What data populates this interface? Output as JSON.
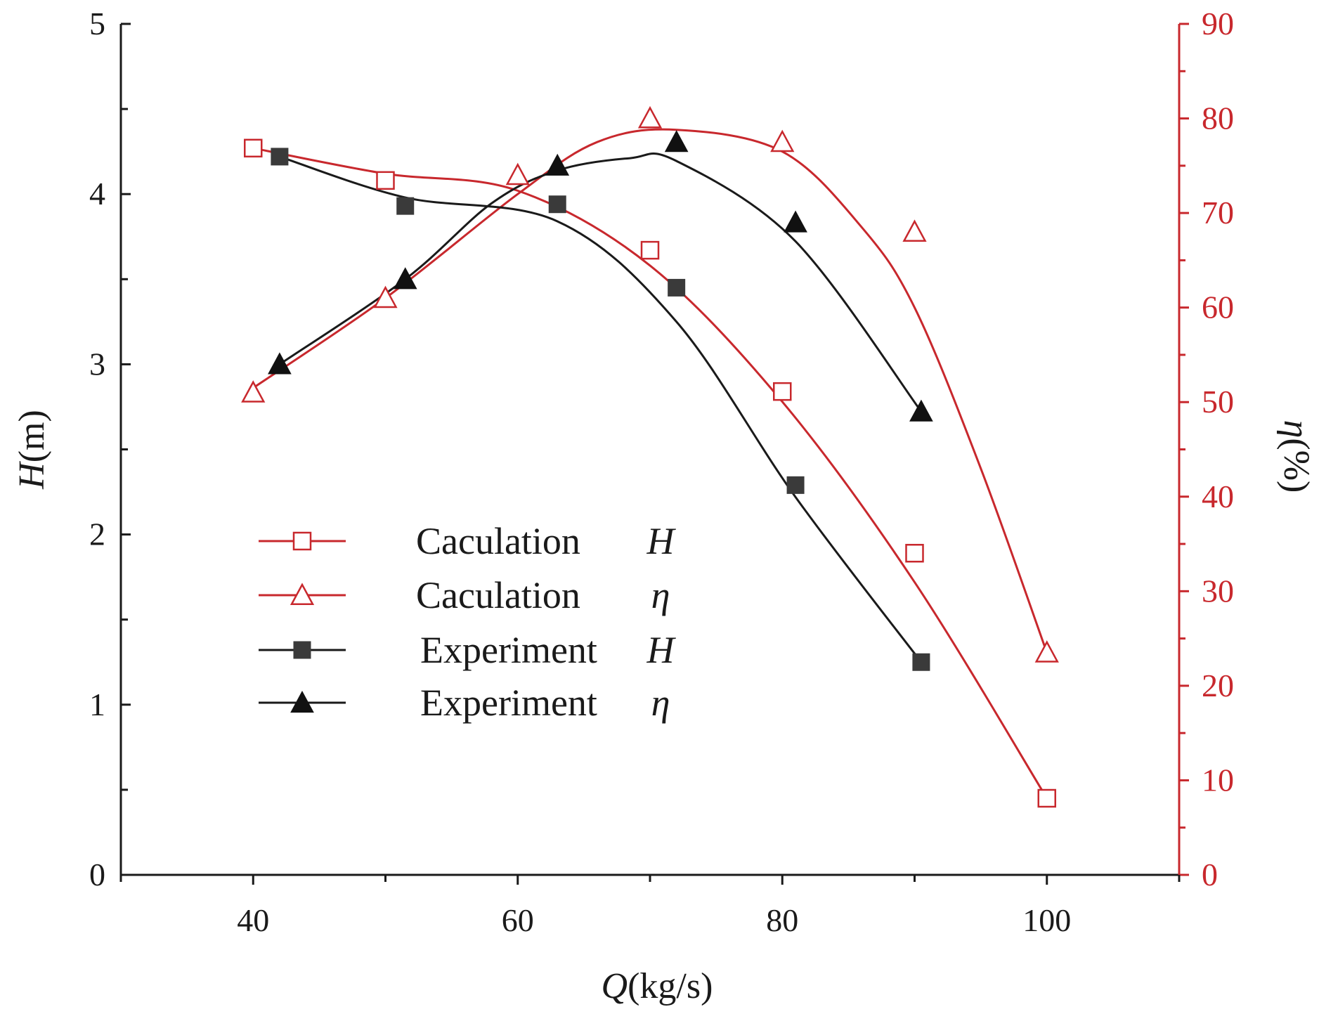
{
  "chart_data": {
    "type": "line",
    "title": "",
    "x_axis": {
      "label_symbol": "Q",
      "label_unit": "(kg/s)",
      "range": [
        30,
        110
      ],
      "ticks": [
        40,
        60,
        80,
        100
      ]
    },
    "y_left_axis": {
      "label_symbol": "H",
      "label_unit": "(m)",
      "range": [
        0,
        5
      ],
      "ticks": [
        0,
        1,
        2,
        3,
        4,
        5
      ]
    },
    "y_right_axis": {
      "label_symbol": "η",
      "label_unit": "(%)",
      "range": [
        0,
        90
      ],
      "ticks": [
        0,
        10,
        20,
        30,
        40,
        50,
        60,
        70,
        80,
        90
      ]
    },
    "series": [
      {
        "name": "Caculation H",
        "legend_label": "Caculation",
        "legend_symbol": "H",
        "axis": "left",
        "marker": "open-square",
        "color": "#c8282d",
        "points": [
          [
            40,
            4.27
          ],
          [
            50,
            4.08
          ],
          [
            70,
            3.67
          ],
          [
            80,
            2.84
          ],
          [
            90,
            1.89
          ],
          [
            100,
            0.45
          ]
        ],
        "curve": [
          [
            40,
            4.27
          ],
          [
            50,
            4.12
          ],
          [
            60,
            4.02
          ],
          [
            70,
            3.58
          ],
          [
            80,
            2.78
          ],
          [
            90,
            1.72
          ],
          [
            100,
            0.45
          ]
        ]
      },
      {
        "name": "Caculation η",
        "legend_label": "Caculation",
        "legend_symbol": "η",
        "axis": "right",
        "marker": "open-triangle",
        "color": "#c8282d",
        "points": [
          [
            40,
            51
          ],
          [
            50,
            61
          ],
          [
            60,
            74
          ],
          [
            70,
            80
          ],
          [
            80,
            77.5
          ],
          [
            90,
            68
          ],
          [
            100,
            23.5
          ]
        ],
        "curve": [
          [
            40,
            51.5
          ],
          [
            50,
            61
          ],
          [
            60,
            72
          ],
          [
            66,
            77.5
          ],
          [
            72,
            78.8
          ],
          [
            80,
            76.5
          ],
          [
            86,
            68.5
          ],
          [
            90,
            60
          ],
          [
            95,
            43
          ],
          [
            100,
            23.5
          ]
        ]
      },
      {
        "name": "Experiment H",
        "legend_label": "Experiment",
        "legend_symbol": "H",
        "axis": "left",
        "marker": "filled-square",
        "color": "#1a1a1a",
        "points": [
          [
            42,
            4.22
          ],
          [
            51.5,
            3.93
          ],
          [
            63,
            3.94
          ],
          [
            72,
            3.45
          ],
          [
            81,
            2.29
          ],
          [
            90.5,
            1.25
          ]
        ],
        "curve": [
          [
            42,
            4.22
          ],
          [
            51.5,
            3.98
          ],
          [
            63,
            3.84
          ],
          [
            72,
            3.25
          ],
          [
            81,
            2.22
          ],
          [
            90.5,
            1.25
          ]
        ]
      },
      {
        "name": "Experiment η",
        "legend_label": "Experiment",
        "legend_symbol": "η",
        "axis": "right",
        "marker": "filled-triangle",
        "color": "#1a1a1a",
        "points": [
          [
            42,
            54
          ],
          [
            51.5,
            63
          ],
          [
            63,
            75
          ],
          [
            72,
            77.5
          ],
          [
            81,
            69
          ],
          [
            90.5,
            49
          ]
        ],
        "curve": [
          [
            42,
            54
          ],
          [
            51.5,
            63
          ],
          [
            58,
            71
          ],
          [
            63,
            74.5
          ],
          [
            68.5,
            75.8
          ],
          [
            72,
            75.5
          ],
          [
            81,
            67
          ],
          [
            90.5,
            49
          ]
        ]
      }
    ]
  },
  "colors": {
    "red_axis": "#c8282d",
    "black": "#1a1a1a"
  }
}
